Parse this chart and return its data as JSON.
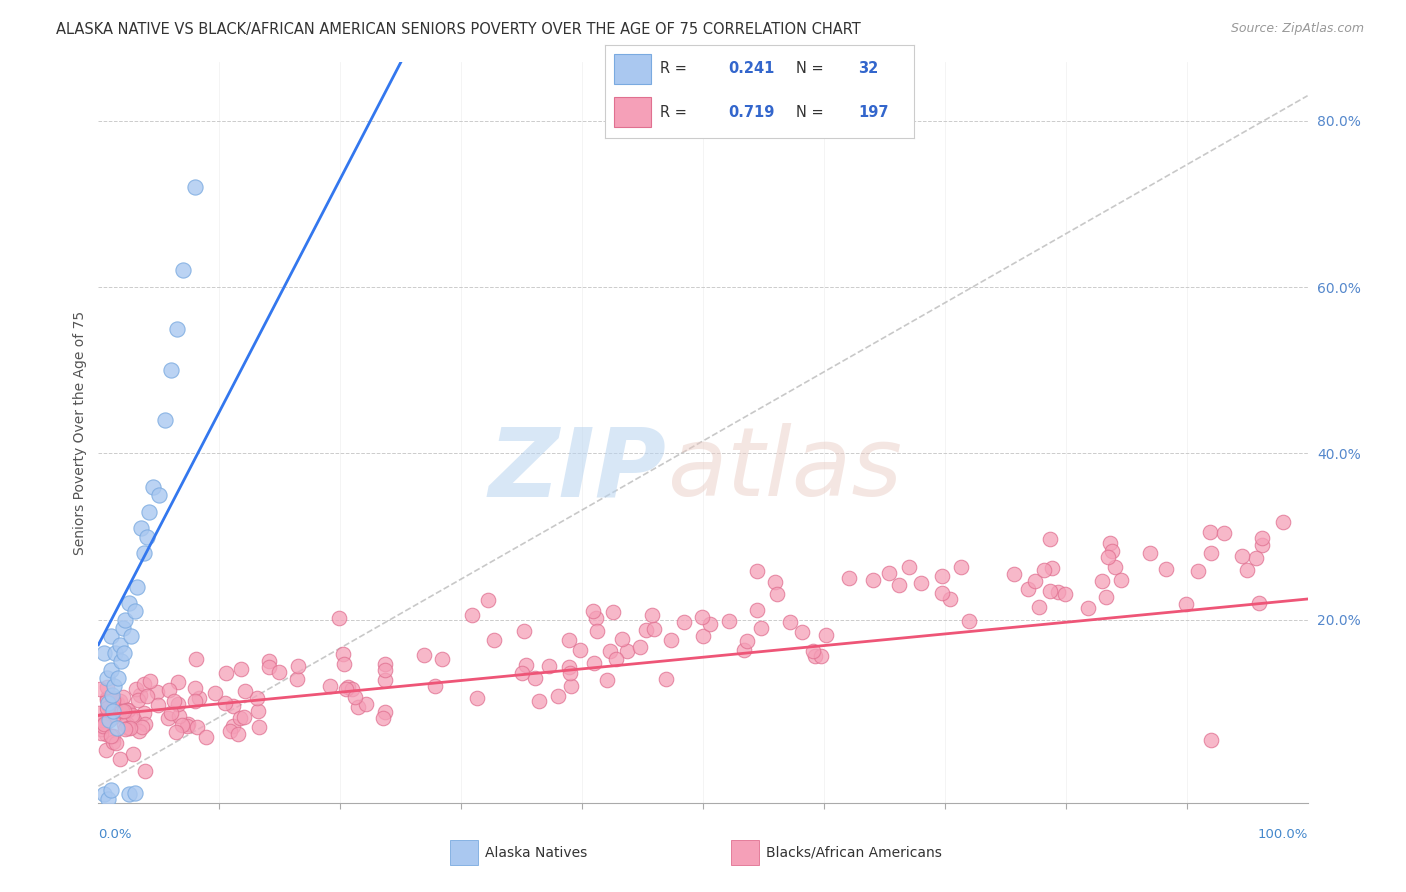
{
  "title": "ALASKA NATIVE VS BLACK/AFRICAN AMERICAN SENIORS POVERTY OVER THE AGE OF 75 CORRELATION CHART",
  "source": "Source: ZipAtlas.com",
  "ylabel": "Seniors Poverty Over the Age of 75",
  "background_color": "#ffffff",
  "grid_color": "#cccccc",
  "alaska_color": "#aac8f0",
  "alaska_edge_color": "#7aaae0",
  "black_color": "#f5a0b8",
  "black_edge_color": "#e07090",
  "regression_alaska_color": "#3377ee",
  "regression_black_color": "#ee5577",
  "diagonal_color": "#bbbbbb",
  "alaska_R": 0.241,
  "alaska_N": 32,
  "black_R": 0.719,
  "black_N": 197,
  "xlim": [
    0.0,
    1.0
  ],
  "ylim": [
    -0.02,
    0.87
  ],
  "figsize": [
    14.06,
    8.92
  ],
  "dpi": 100
}
